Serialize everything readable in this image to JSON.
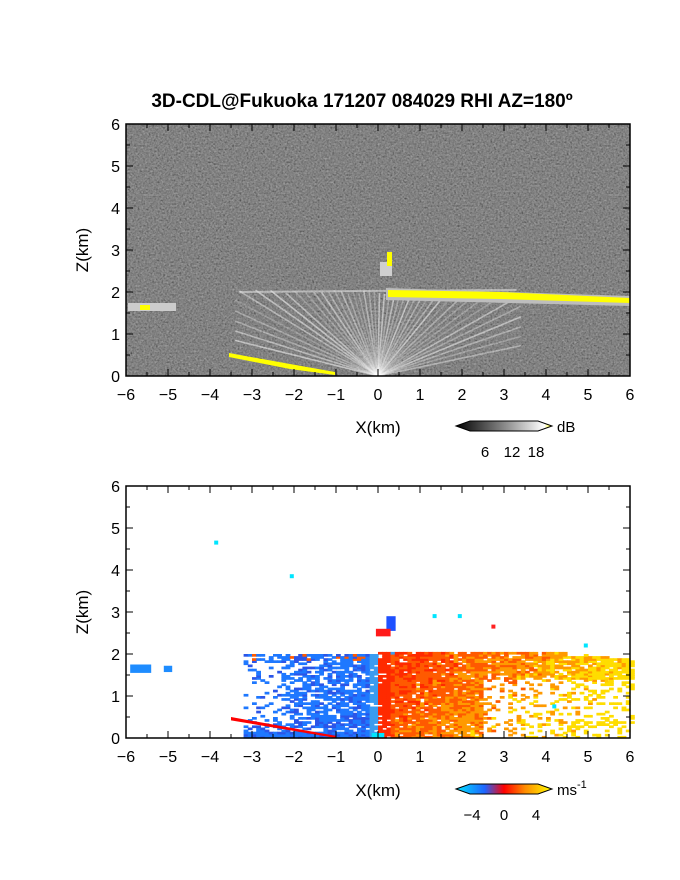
{
  "chart_data": [
    {
      "type": "heatmap",
      "title": "3D-CDL@Fukuoka 171207 084029 RHI AZ=180º",
      "xlabel": "X(km)",
      "ylabel": "Z(km)",
      "xlim": [
        -6,
        6
      ],
      "ylim": [
        0,
        6
      ],
      "xticks": [
        "-6",
        "-5",
        "-4",
        "-3",
        "-2",
        "-1",
        "0",
        "1",
        "2",
        "3",
        "4",
        "5",
        "6"
      ],
      "yticks": [
        "0",
        "1",
        "2",
        "3",
        "4",
        "5",
        "6"
      ],
      "background": "dark gray speckle noise",
      "colorbar": {
        "unit": "dB",
        "ticks": [
          "6",
          "12",
          "18"
        ],
        "values": [
          6,
          12,
          18
        ],
        "colors": [
          "#000000",
          "#ffffff",
          "#ffff00"
        ]
      },
      "features": [
        {
          "kind": "radial fan of returns",
          "x": [
            -3.3,
            3.3
          ],
          "z": [
            0,
            2.0
          ]
        },
        {
          "kind": "cloud layer",
          "x": [
            0.2,
            6
          ],
          "z": [
            1.65,
            2.05
          ],
          "peak_db": 18
        },
        {
          "kind": "low layer",
          "x": [
            -3.5,
            -1.0
          ],
          "z": [
            0.05,
            0.5
          ],
          "peak_db": 18
        },
        {
          "kind": "isolated echo",
          "x": [
            0.2,
            0.4
          ],
          "z": [
            2.45,
            2.9
          ]
        },
        {
          "kind": "isolated echo",
          "x": [
            -5.9,
            -4.9
          ],
          "z": [
            1.55,
            1.75
          ]
        }
      ]
    },
    {
      "type": "heatmap",
      "xlabel": "X(km)",
      "ylabel": "Z(km)",
      "xlim": [
        -6,
        6
      ],
      "ylim": [
        0,
        6
      ],
      "xticks": [
        "-6",
        "-5",
        "-4",
        "-3",
        "-2",
        "-1",
        "0",
        "1",
        "2",
        "3",
        "4",
        "5",
        "6"
      ],
      "yticks": [
        "0",
        "1",
        "2",
        "3",
        "4",
        "5",
        "6"
      ],
      "colorbar": {
        "unit": "ms",
        "unit_exponent": "-1",
        "ticks": [
          "-4",
          "0",
          "4"
        ],
        "values": [
          -4,
          0,
          4
        ],
        "colors": [
          "#00e5ff",
          "#1e64ff",
          "#ff0000",
          "#ff8c00",
          "#ffff00"
        ]
      },
      "features": [
        {
          "kind": "approaching (negative) velocities",
          "x": [
            -3.2,
            0
          ],
          "z": [
            0,
            2.0
          ],
          "velocity_ms": -3
        },
        {
          "kind": "receding (positive) velocities",
          "x": [
            0,
            6
          ],
          "z": [
            0,
            2.05
          ],
          "velocity_ms": 3
        },
        {
          "kind": "isolated echo",
          "x": [
            -5.9,
            -4.9
          ],
          "z": [
            1.55,
            1.75
          ],
          "velocity_ms": -3
        },
        {
          "kind": "isolated echo",
          "x": [
            0.2,
            0.4
          ],
          "z": [
            2.45,
            2.9
          ],
          "velocity_ms": -2
        }
      ]
    }
  ]
}
